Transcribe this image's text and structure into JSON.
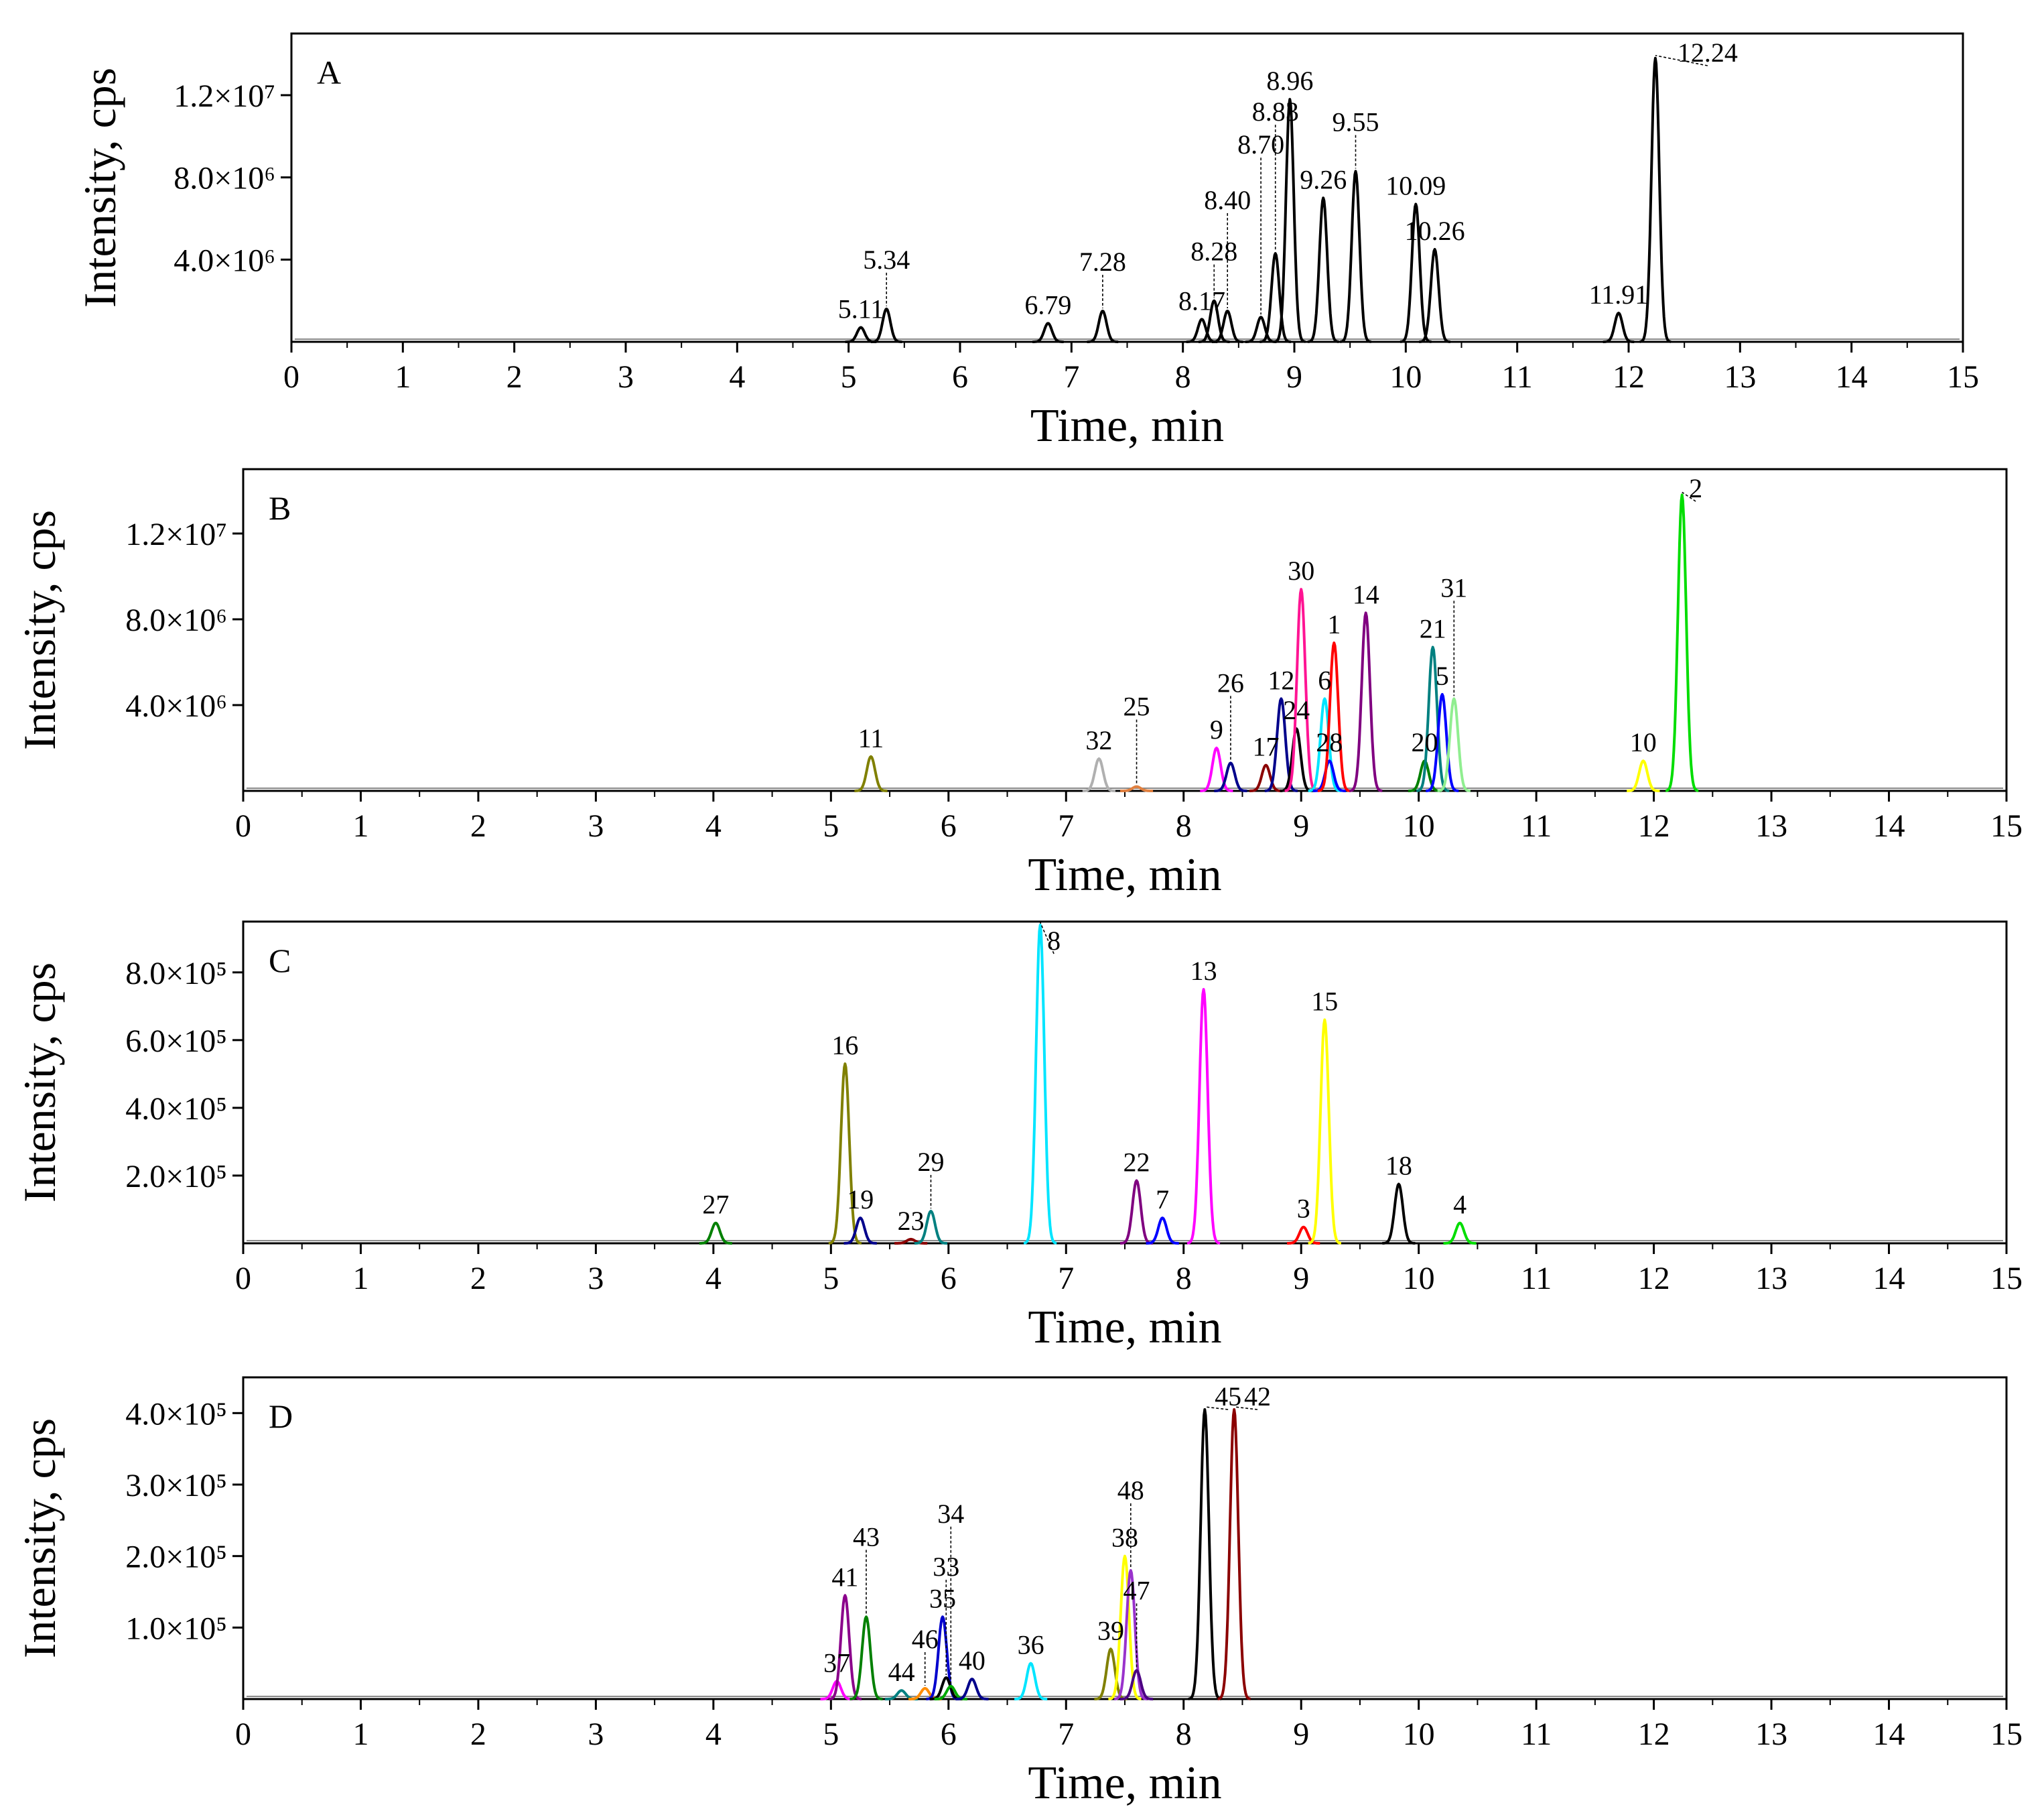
{
  "chart_data": [
    {
      "panel": "A",
      "type": "line",
      "xlabel": "Time, min",
      "ylabel": "Intensity, cps",
      "xlim": [
        0,
        15
      ],
      "ylim": [
        0,
        15000000
      ],
      "x_ticks": [
        0,
        1,
        2,
        3,
        4,
        5,
        6,
        7,
        8,
        9,
        10,
        11,
        12,
        13,
        14,
        15
      ],
      "y_ticks": [
        4000000,
        8000000,
        12000000
      ],
      "y_tick_labels": [
        "4.0×10⁶",
        "8.0×10⁶",
        "1.2×10⁷"
      ],
      "color": "#000000",
      "peaks": [
        {
          "label": "5.11",
          "x": 5.11,
          "y": 700000
        },
        {
          "label": "5.34",
          "x": 5.34,
          "y": 1600000
        },
        {
          "label": "6.79",
          "x": 6.79,
          "y": 900000
        },
        {
          "label": "7.28",
          "x": 7.28,
          "y": 1500000
        },
        {
          "label": "8.17",
          "x": 8.17,
          "y": 1100000
        },
        {
          "label": "8.28",
          "x": 8.28,
          "y": 2000000
        },
        {
          "label": "8.40",
          "x": 8.4,
          "y": 1500000
        },
        {
          "label": "8.70",
          "x": 8.7,
          "y": 1200000
        },
        {
          "label": "8.83",
          "x": 8.83,
          "y": 4300000
        },
        {
          "label": "8.96",
          "x": 8.96,
          "y": 11800000
        },
        {
          "label": "9.26",
          "x": 9.26,
          "y": 7000000
        },
        {
          "label": "9.55",
          "x": 9.55,
          "y": 8300000
        },
        {
          "label": "10.09",
          "x": 10.09,
          "y": 6700000
        },
        {
          "label": "10.26",
          "x": 10.26,
          "y": 4500000
        },
        {
          "label": "11.91",
          "x": 11.91,
          "y": 1400000
        },
        {
          "label": "12.24",
          "x": 12.24,
          "y": 13800000
        }
      ]
    },
    {
      "panel": "B",
      "type": "line",
      "xlabel": "Time, min",
      "ylabel": "Intensity, cps",
      "xlim": [
        0,
        15
      ],
      "ylim": [
        0,
        15000000
      ],
      "x_ticks": [
        0,
        1,
        2,
        3,
        4,
        5,
        6,
        7,
        8,
        9,
        10,
        11,
        12,
        13,
        14,
        15
      ],
      "y_ticks": [
        4000000,
        8000000,
        12000000
      ],
      "y_tick_labels": [
        "4.0×10⁶",
        "8.0×10⁶",
        "1.2×10⁷"
      ],
      "peaks": [
        {
          "label": "11",
          "x": 5.34,
          "y": 1600000,
          "color": "#808000"
        },
        {
          "label": "32",
          "x": 7.28,
          "y": 1500000,
          "color": "#b0b0b0"
        },
        {
          "label": "25",
          "x": 7.6,
          "y": 200000,
          "color": "#e08040"
        },
        {
          "label": "9",
          "x": 8.28,
          "y": 2000000,
          "color": "#ff00ff"
        },
        {
          "label": "26",
          "x": 8.4,
          "y": 1300000,
          "color": "#00008b"
        },
        {
          "label": "17",
          "x": 8.7,
          "y": 1200000,
          "color": "#8b0000"
        },
        {
          "label": "12",
          "x": 8.83,
          "y": 4300000,
          "color": "#00008b"
        },
        {
          "label": "24",
          "x": 8.96,
          "y": 2900000,
          "color": "#000000"
        },
        {
          "label": "30",
          "x": 9.0,
          "y": 9400000,
          "color": "#ff1493"
        },
        {
          "label": "6",
          "x": 9.2,
          "y": 4300000,
          "color": "#00e5ff"
        },
        {
          "label": "28",
          "x": 9.24,
          "y": 1400000,
          "color": "#0000ff"
        },
        {
          "label": "1",
          "x": 9.28,
          "y": 6900000,
          "color": "#ff0000"
        },
        {
          "label": "14",
          "x": 9.55,
          "y": 8300000,
          "color": "#800080"
        },
        {
          "label": "20",
          "x": 10.05,
          "y": 1400000,
          "color": "#008000"
        },
        {
          "label": "21",
          "x": 10.12,
          "y": 6700000,
          "color": "#008080"
        },
        {
          "label": "5",
          "x": 10.2,
          "y": 4500000,
          "color": "#0000ff"
        },
        {
          "label": "31",
          "x": 10.3,
          "y": 4300000,
          "color": "#90ee90"
        },
        {
          "label": "10",
          "x": 11.91,
          "y": 1400000,
          "color": "#ffff00"
        },
        {
          "label": "2",
          "x": 12.24,
          "y": 13800000,
          "color": "#00dd00"
        }
      ]
    },
    {
      "panel": "C",
      "type": "line",
      "xlabel": "Time, min",
      "ylabel": "Intensity, cps",
      "xlim": [
        0,
        15
      ],
      "ylim": [
        0,
        950000
      ],
      "x_ticks": [
        0,
        1,
        2,
        3,
        4,
        5,
        6,
        7,
        8,
        9,
        10,
        11,
        12,
        13,
        14,
        15
      ],
      "y_ticks": [
        200000,
        400000,
        600000,
        800000
      ],
      "y_tick_labels": [
        "2.0×10⁵",
        "4.0×10⁵",
        "6.0×10⁵",
        "8.0×10⁵"
      ],
      "peaks": [
        {
          "label": "27",
          "x": 4.02,
          "y": 60000,
          "color": "#008000"
        },
        {
          "label": "16",
          "x": 5.12,
          "y": 530000,
          "color": "#808000"
        },
        {
          "label": "19",
          "x": 5.25,
          "y": 75000,
          "color": "#00008b"
        },
        {
          "label": "23",
          "x": 5.68,
          "y": 12000,
          "color": "#8b0000"
        },
        {
          "label": "29",
          "x": 5.85,
          "y": 95000,
          "color": "#008080"
        },
        {
          "label": "8",
          "x": 6.78,
          "y": 940000,
          "color": "#00e5ff"
        },
        {
          "label": "22",
          "x": 7.6,
          "y": 185000,
          "color": "#800080"
        },
        {
          "label": "7",
          "x": 7.82,
          "y": 75000,
          "color": "#0000ff"
        },
        {
          "label": "13",
          "x": 8.17,
          "y": 750000,
          "color": "#ff00ff"
        },
        {
          "label": "3",
          "x": 9.02,
          "y": 48000,
          "color": "#ff0000"
        },
        {
          "label": "15",
          "x": 9.2,
          "y": 660000,
          "color": "#ffff00"
        },
        {
          "label": "18",
          "x": 9.83,
          "y": 175000,
          "color": "#000000"
        },
        {
          "label": "4",
          "x": 10.35,
          "y": 60000,
          "color": "#00dd00"
        }
      ]
    },
    {
      "panel": "D",
      "type": "line",
      "xlabel": "Time, min",
      "ylabel": "Intensity, cps",
      "xlim": [
        0,
        15
      ],
      "ylim": [
        0,
        450000
      ],
      "x_ticks": [
        0,
        1,
        2,
        3,
        4,
        5,
        6,
        7,
        8,
        9,
        10,
        11,
        12,
        13,
        14,
        15
      ],
      "y_ticks": [
        100000,
        200000,
        300000,
        400000
      ],
      "y_tick_labels": [
        "1.0×10⁵",
        "2.0×10⁵",
        "3.0×10⁵",
        "4.0×10⁵"
      ],
      "peaks": [
        {
          "label": "37",
          "x": 5.05,
          "y": 25000,
          "color": "#ff00ff"
        },
        {
          "label": "41",
          "x": 5.12,
          "y": 145000,
          "color": "#8b008b"
        },
        {
          "label": "43",
          "x": 5.3,
          "y": 115000,
          "color": "#008000"
        },
        {
          "label": "44",
          "x": 5.6,
          "y": 12000,
          "color": "#008080"
        },
        {
          "label": "46",
          "x": 5.8,
          "y": 15000,
          "color": "#ff8c00"
        },
        {
          "label": "35",
          "x": 5.95,
          "y": 115000,
          "color": "#0000cd"
        },
        {
          "label": "33",
          "x": 5.98,
          "y": 30000,
          "color": "#000000"
        },
        {
          "label": "34",
          "x": 6.02,
          "y": 18000,
          "color": "#00aa00"
        },
        {
          "label": "40",
          "x": 6.2,
          "y": 28000,
          "color": "#00008b"
        },
        {
          "label": "36",
          "x": 6.7,
          "y": 50000,
          "color": "#00e5ff"
        },
        {
          "label": "39",
          "x": 7.38,
          "y": 70000,
          "color": "#808000"
        },
        {
          "label": "38",
          "x": 7.5,
          "y": 200000,
          "color": "#ffff00"
        },
        {
          "label": "48",
          "x": 7.55,
          "y": 180000,
          "color": "#9932cc"
        },
        {
          "label": "47",
          "x": 7.6,
          "y": 40000,
          "color": "#4b0082"
        },
        {
          "label": "45",
          "x": 8.18,
          "y": 405000,
          "color": "#000000"
        },
        {
          "label": "42",
          "x": 8.43,
          "y": 405000,
          "color": "#8b0000"
        }
      ]
    }
  ]
}
